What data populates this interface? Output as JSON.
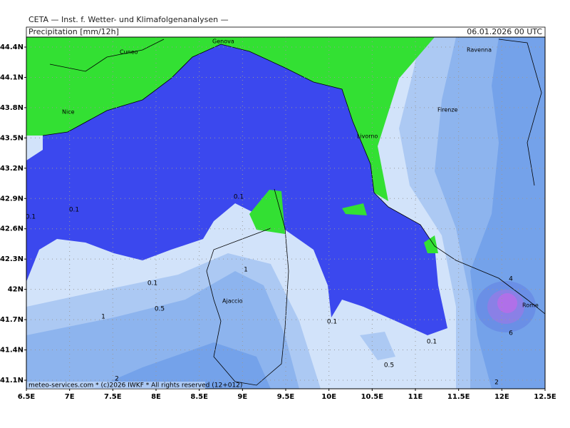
{
  "header": {
    "title": "CETA — Inst. f. Wetter- und Klimafolgenanalysen —",
    "variable": "Precipitation [mm/12h]",
    "date": "06.01.2026 00 UTC"
  },
  "lat_ticks": [
    {
      "value": 44.4,
      "label": "44.4N"
    },
    {
      "value": 44.1,
      "label": "44.1N"
    },
    {
      "value": 43.8,
      "label": "43.8N"
    },
    {
      "value": 43.5,
      "label": "43.5N"
    },
    {
      "value": 43.2,
      "label": "43.2N"
    },
    {
      "value": 42.9,
      "label": "42.9N"
    },
    {
      "value": 42.6,
      "label": "42.6N"
    },
    {
      "value": 42.3,
      "label": "42.3N"
    },
    {
      "value": 42,
      "label": "42N"
    },
    {
      "value": 41.7,
      "label": "41.7N"
    },
    {
      "value": 41.4,
      "label": "41.4N"
    },
    {
      "value": 41.1,
      "label": "41.1N"
    }
  ],
  "lon_ticks": [
    {
      "value": 6.5,
      "label": "6.5E"
    },
    {
      "value": 7,
      "label": "7E"
    },
    {
      "value": 7.5,
      "label": "7.5E"
    },
    {
      "value": 8,
      "label": "8E"
    },
    {
      "value": 8.5,
      "label": "8.5E"
    },
    {
      "value": 9,
      "label": "9E"
    },
    {
      "value": 9.5,
      "label": "9.5E"
    },
    {
      "value": 10,
      "label": "10E"
    },
    {
      "value": 10.5,
      "label": "10.5E"
    },
    {
      "value": 11,
      "label": "11E"
    },
    {
      "value": 11.5,
      "label": "11.5E"
    },
    {
      "value": 12,
      "label": "12E"
    },
    {
      "value": 12.5,
      "label": "12.5E"
    }
  ],
  "cities": [
    "Cuneo",
    "Genova",
    "Nice",
    "Livorno",
    "Firenze",
    "Ravenna",
    "Ajaccio",
    "Rome"
  ],
  "contour_labels": [
    "0.1",
    "0.1",
    "0.1",
    "0.1",
    "0.1",
    "0.1",
    "0.5",
    "0.5",
    "1",
    "1",
    "2",
    "2",
    "4",
    "6"
  ],
  "footer": {
    "copyright": "meteo-services.com * (c)2026 IWKF * All rights reserved (12+012)"
  }
}
